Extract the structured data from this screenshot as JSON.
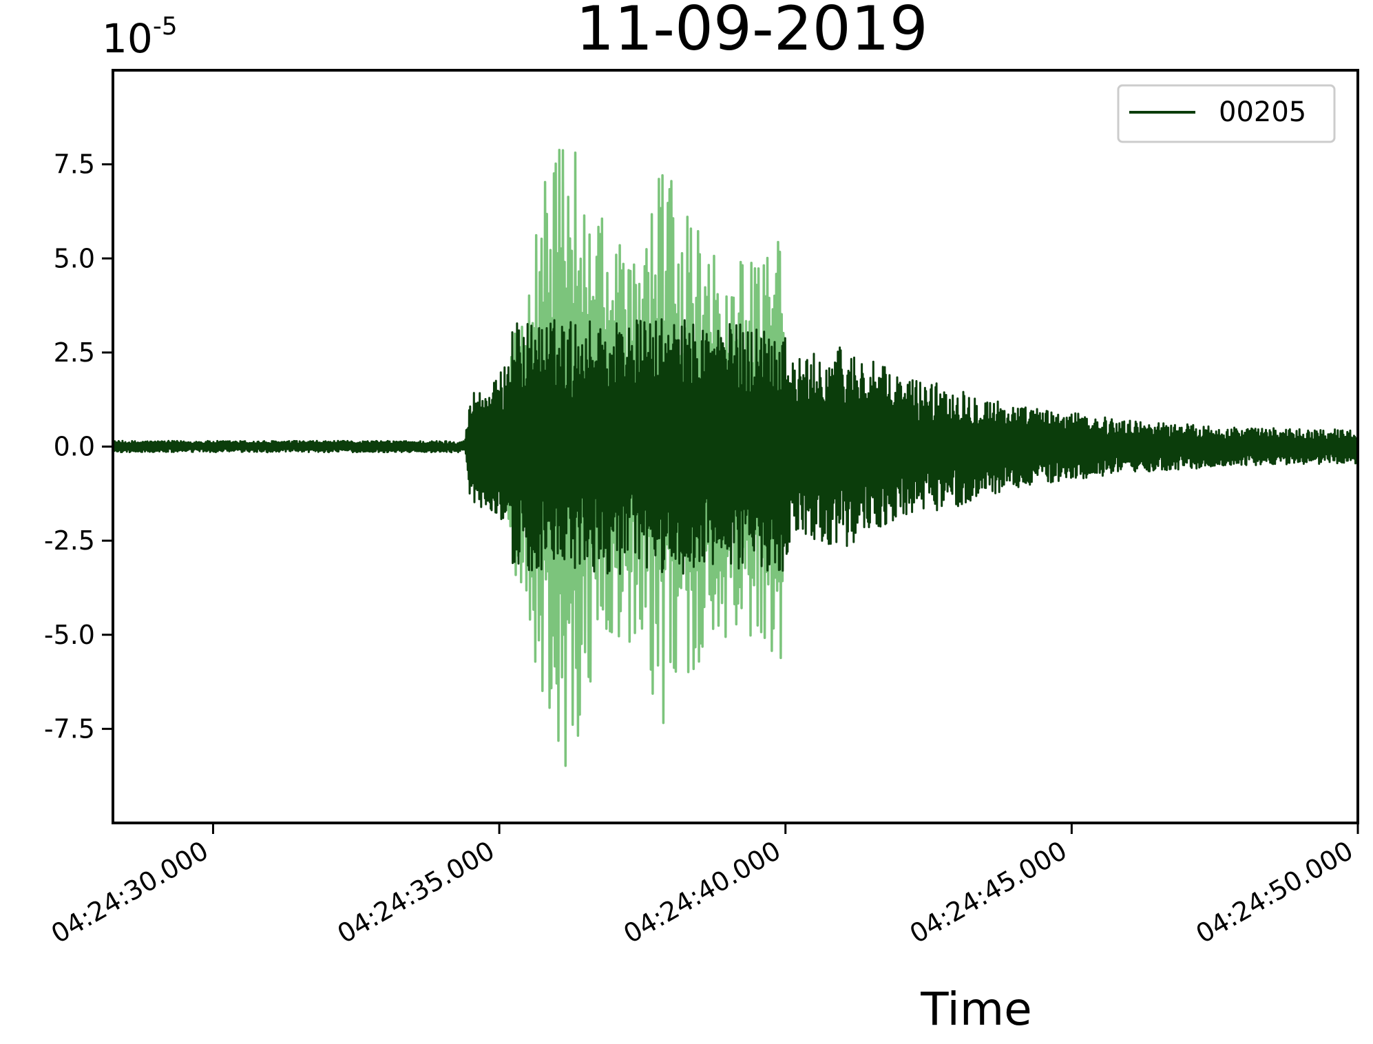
{
  "chart_data": {
    "type": "line",
    "title": "11-09-2019",
    "xlabel": "Time",
    "ylabel": "",
    "y_offset_base": "10",
    "y_offset_exponent": "-5",
    "xlim": [
      "04:24:28.250",
      "04:24:50.000"
    ],
    "ylim": [
      -10.0,
      10.0
    ],
    "x_ticks": [
      {
        "value": "04:24:30.000",
        "label": "04:24:30.000"
      },
      {
        "value": "04:24:35.000",
        "label": "04:24:35.000"
      },
      {
        "value": "04:24:40.000",
        "label": "04:24:40.000"
      },
      {
        "value": "04:24:45.000",
        "label": "04:24:45.000"
      },
      {
        "value": "04:24:50.000",
        "label": "04:24:50.000"
      }
    ],
    "y_ticks": [
      {
        "value": 7.5,
        "label": "7.5"
      },
      {
        "value": 5.0,
        "label": "5.0"
      },
      {
        "value": 2.5,
        "label": "2.5"
      },
      {
        "value": 0.0,
        "label": "0.0"
      },
      {
        "value": -2.5,
        "label": "-2.5"
      },
      {
        "value": -5.0,
        "label": "-5.0"
      },
      {
        "value": -7.5,
        "label": "-7.5"
      }
    ],
    "grid": false,
    "legend": {
      "placement": "top-right",
      "entries": [
        "00205"
      ]
    },
    "series": [
      {
        "name": "00205",
        "color": "#0b3d0b",
        "envelope": {
          "x": [
            "04:24:28.250",
            "04:24:34.400",
            "04:24:34.500",
            "04:24:35.000",
            "04:24:35.200",
            "04:24:36.000",
            "04:24:37.000",
            "04:24:38.000",
            "04:24:39.000",
            "04:24:40.000",
            "04:24:40.100",
            "04:24:41.000",
            "04:24:42.000",
            "04:24:43.000",
            "04:24:44.000",
            "04:24:45.000",
            "04:24:46.000",
            "04:24:47.000",
            "04:24:48.000",
            "04:24:50.000"
          ],
          "amplitude": [
            0.15,
            0.15,
            1.5,
            1.8,
            3.3,
            3.4,
            3.4,
            3.4,
            3.3,
            3.3,
            2.3,
            2.7,
            1.9,
            1.6,
            1.1,
            0.9,
            0.7,
            0.6,
            0.5,
            0.45
          ]
        }
      },
      {
        "name": "",
        "color": "#7cc47c",
        "envelope": {
          "x": [
            "04:24:28.250",
            "04:24:35.000",
            "04:24:35.300",
            "04:24:35.700",
            "04:24:36.100",
            "04:24:36.500",
            "04:24:37.000",
            "04:24:37.500",
            "04:24:37.800",
            "04:24:38.200",
            "04:24:38.700",
            "04:24:39.300",
            "04:24:39.900",
            "04:24:40.050",
            "04:24:50.000"
          ],
          "amplitude": [
            0.0,
            0.0,
            3.6,
            6.4,
            9.2,
            7.0,
            5.5,
            5.0,
            7.8,
            6.5,
            5.2,
            5.0,
            6.6,
            0.0,
            0.0
          ]
        }
      }
    ]
  }
}
